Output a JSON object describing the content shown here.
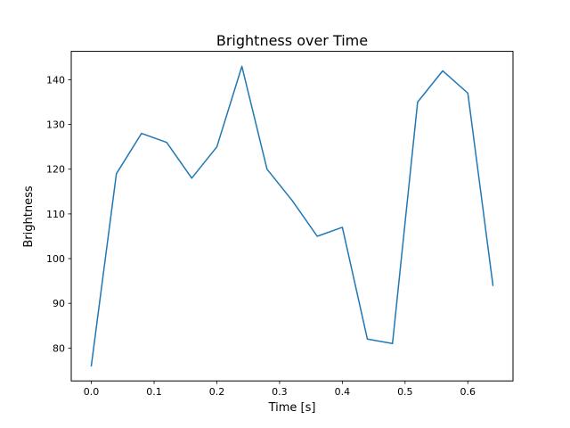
{
  "chart_data": {
    "type": "line",
    "title": "Brightness over Time",
    "xlabel": "Time [s]",
    "ylabel": "Brightness",
    "x": [
      0.0,
      0.04,
      0.08,
      0.12,
      0.16,
      0.2,
      0.24,
      0.28,
      0.32,
      0.36,
      0.4,
      0.44,
      0.48,
      0.52,
      0.56,
      0.6,
      0.64
    ],
    "y": [
      76,
      119,
      128,
      126,
      118,
      125,
      143,
      120,
      113,
      105,
      107,
      82,
      81,
      135,
      142,
      137,
      94
    ],
    "series_name": "brightness",
    "line_color": "#1f77b4",
    "line_width": 1.5,
    "xlim": [
      -0.032,
      0.672
    ],
    "ylim": [
      72.65,
      146.35
    ],
    "xticks": [
      0.0,
      0.1,
      0.2,
      0.3,
      0.4,
      0.5,
      0.6
    ],
    "xtick_labels": [
      "0.0",
      "0.1",
      "0.2",
      "0.3",
      "0.4",
      "0.5",
      "0.6"
    ],
    "yticks": [
      80,
      90,
      100,
      110,
      120,
      130,
      140
    ],
    "ytick_labels": [
      "80",
      "90",
      "100",
      "110",
      "120",
      "130",
      "140"
    ],
    "grid": false,
    "legend_position": "none",
    "frame_color": "#000000",
    "background_color": "#ffffff"
  }
}
